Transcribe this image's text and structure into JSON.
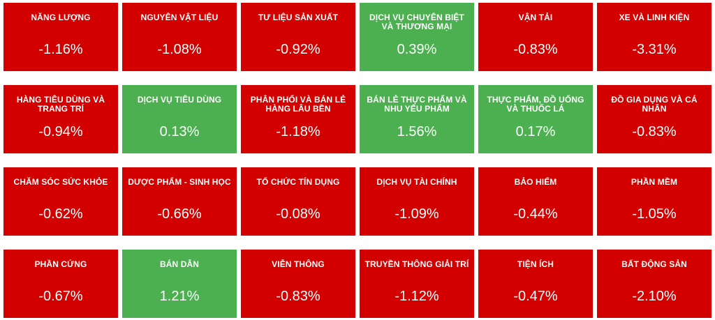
{
  "colors": {
    "negative": "#d30000",
    "positive": "#4caf50",
    "text": "#ffffff"
  },
  "sectors": [
    {
      "name": "NĂNG LƯỢNG",
      "change": "-1.16%",
      "trend": "negative"
    },
    {
      "name": "NGUYÊN VẬT LIỆU",
      "change": "-1.08%",
      "trend": "negative"
    },
    {
      "name": "TƯ LIỆU SẢN XUẤT",
      "change": "-0.92%",
      "trend": "negative"
    },
    {
      "name": "DỊCH VỤ CHUYÊN BIỆT VÀ THƯƠNG MẠI",
      "change": "0.39%",
      "trend": "positive"
    },
    {
      "name": "VẬN TẢI",
      "change": "-0.83%",
      "trend": "negative"
    },
    {
      "name": "XE VÀ LINH KIỆN",
      "change": "-3.31%",
      "trend": "negative"
    },
    {
      "name": "HÀNG TIÊU DÙNG VÀ TRANG TRÍ",
      "change": "-0.94%",
      "trend": "negative"
    },
    {
      "name": "DỊCH VỤ TIÊU DÙNG",
      "change": "0.13%",
      "trend": "positive"
    },
    {
      "name": "PHÂN PHỐI VÀ BÁN LẺ HÀNG LÂU BỀN",
      "change": "-1.18%",
      "trend": "negative"
    },
    {
      "name": "BÁN LẺ THỰC PHẨM VÀ NHU YẾU PHẨM",
      "change": "1.56%",
      "trend": "positive"
    },
    {
      "name": "THỰC PHẨM, ĐỒ UỐNG VÀ THUỐC LÁ",
      "change": "0.17%",
      "trend": "positive"
    },
    {
      "name": "ĐỒ GIA DỤNG VÀ CÁ NHÂN",
      "change": "-0.83%",
      "trend": "negative"
    },
    {
      "name": "CHĂM SÓC SỨC KHỎE",
      "change": "-0.62%",
      "trend": "negative"
    },
    {
      "name": "DƯỢC PHẨM - SINH HỌC",
      "change": "-0.66%",
      "trend": "negative"
    },
    {
      "name": "TỔ CHỨC TÍN DỤNG",
      "change": "-0.08%",
      "trend": "negative"
    },
    {
      "name": "DỊCH VỤ TÀI CHÍNH",
      "change": "-1.09%",
      "trend": "negative"
    },
    {
      "name": "BẢO HIỂM",
      "change": "-0.44%",
      "trend": "negative"
    },
    {
      "name": "PHẦN MỀM",
      "change": "-1.05%",
      "trend": "negative"
    },
    {
      "name": "PHẦN CỨNG",
      "change": "-0.67%",
      "trend": "negative"
    },
    {
      "name": "BÁN DẪN",
      "change": "1.21%",
      "trend": "positive"
    },
    {
      "name": "VIỄN THÔNG",
      "change": "-0.83%",
      "trend": "negative"
    },
    {
      "name": "TRUYỀN THÔNG GIẢI TRÍ",
      "change": "-1.12%",
      "trend": "negative"
    },
    {
      "name": "TIỆN ÍCH",
      "change": "-0.47%",
      "trend": "negative"
    },
    {
      "name": "BẤT ĐỘNG SẢN",
      "change": "-2.10%",
      "trend": "negative"
    }
  ]
}
